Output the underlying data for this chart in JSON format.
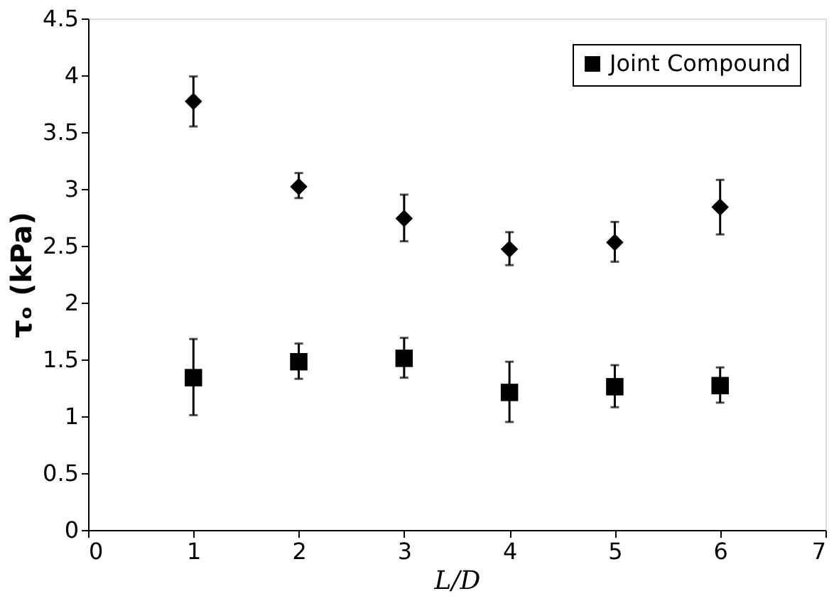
{
  "chart_data": {
    "type": "scatter",
    "xlabel": "L/D",
    "ylabel": "τₒ (kPa)",
    "x": [
      1,
      2,
      3,
      4,
      5,
      6
    ],
    "series": [
      {
        "color": "#000000",
        "marker": "diamond",
        "values": [
          3.77,
          3.02,
          2.74,
          2.47,
          2.53,
          2.84
        ],
        "errors": [
          [
            3.55,
            3.99
          ],
          [
            2.92,
            3.14
          ],
          [
            2.54,
            2.95
          ],
          [
            2.33,
            2.62
          ],
          [
            2.36,
            2.71
          ],
          [
            2.6,
            3.08
          ]
        ]
      },
      {
        "name": "Joint Compound",
        "color": "#000000",
        "marker": "square",
        "values": [
          1.34,
          1.48,
          1.51,
          1.21,
          1.26,
          1.27
        ],
        "errors": [
          [
            1.01,
            1.68
          ],
          [
            1.33,
            1.64
          ],
          [
            1.34,
            1.69
          ],
          [
            0.95,
            1.48
          ],
          [
            1.08,
            1.45
          ],
          [
            1.12,
            1.43
          ]
        ]
      }
    ],
    "xlim": [
      0,
      7
    ],
    "xticks": [
      0,
      1,
      2,
      3,
      4,
      5,
      6,
      7
    ],
    "ylim": [
      0,
      4.5
    ],
    "yticks": [
      0,
      0.5,
      1,
      1.5,
      2,
      2.5,
      3,
      3.5,
      4,
      4.5
    ],
    "grid": false,
    "legend": "top right"
  }
}
